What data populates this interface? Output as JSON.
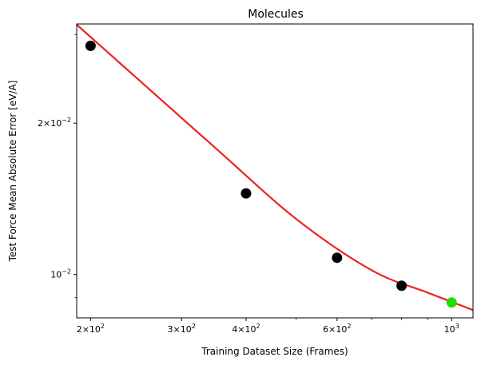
{
  "chart_data": {
    "type": "scatter",
    "title": "Molecules",
    "xlabel": "Training Dataset Size (Frames)",
    "ylabel": "Test Force Mean Absolute Error [eV/A]",
    "xscale": "log",
    "yscale": "log",
    "xlim": [
      188,
      1100
    ],
    "ylim": [
      0.0082,
      0.0315
    ],
    "grid": false,
    "x_ticks": [
      {
        "value": 200,
        "mantissa": "2",
        "base": "10",
        "exp": "2"
      },
      {
        "value": 300,
        "mantissa": "3",
        "base": "10",
        "exp": "2"
      },
      {
        "value": 400,
        "mantissa": "4",
        "base": "10",
        "exp": "2"
      },
      {
        "value": 600,
        "mantissa": "6",
        "base": "10",
        "exp": "2"
      },
      {
        "value": 1000,
        "mantissa": "",
        "base": "10",
        "exp": "3"
      }
    ],
    "x_minor_ticks": [
      500,
      700,
      800,
      900
    ],
    "y_ticks": [
      {
        "value": 0.02,
        "mantissa": "2",
        "base": "10",
        "exp": "−2"
      },
      {
        "value": 0.01,
        "mantissa": "",
        "base": "10",
        "exp": "−2"
      }
    ],
    "y_minor_ticks": [
      0.009,
      0.03
    ],
    "series": [
      {
        "kind": "points",
        "color": "#000000",
        "x": [
          200,
          400,
          600,
          800
        ],
        "y": [
          0.0285,
          0.0145,
          0.0108,
          0.0095
        ]
      },
      {
        "kind": "points",
        "color": "#22dd00",
        "x": [
          1000
        ],
        "y": [
          0.0088
        ]
      },
      {
        "kind": "fit",
        "color": "#ee2222",
        "x": [
          188,
          250,
          350,
          500,
          700,
          900,
          1100
        ],
        "y": [
          0.0314,
          0.0242,
          0.0178,
          0.0129,
          0.0102,
          0.0092,
          0.0085
        ]
      }
    ]
  }
}
